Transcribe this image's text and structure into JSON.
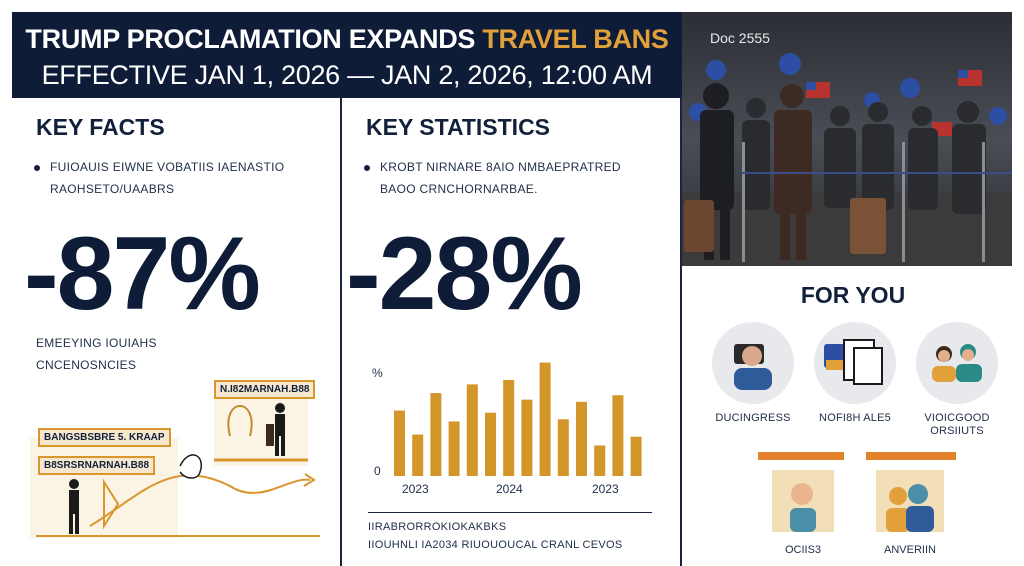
{
  "banner": {
    "line1_prefix": "TRUMP PROCLAMATION EXPANDS ",
    "line1_highlight": "TRAVEL BANS",
    "line2": "EFFECTIVE JAN 1, 2026 — JAN 2, 2026, 12:00 AM"
  },
  "photo": {
    "doc_label": "Doc 2555"
  },
  "key_facts": {
    "title": "KEY FACTS",
    "bullet_line1": "FUIOAUIS EIWNE VOBATIIS IAENASTIO",
    "bullet_line2": "RAOHSETO/UAABRS",
    "big_number": "-87%",
    "caption_line1": "EMEEYING IOUIAHS",
    "caption_line2": "CNCENOSNCIES",
    "tags": [
      "N.I82MARNAH.B88",
      "BANGSBSBRE 5. KRAAP",
      "B8SRSRNARNAH.B88"
    ]
  },
  "key_statistics": {
    "title": "KEY STATISTICS",
    "bullet_line1": "KROBT NIRNARE 8AIO NMBAEPRATRED",
    "bullet_line2": "BAOO CRNCHORNARBAE.",
    "big_number": "-28%",
    "footer_line1": "IIRABRORROKIOKAKBKS",
    "footer_line2": "IIOUHNLI IA2034 RIUOUOUCAL CRANL CEVOS"
  },
  "chart_data": {
    "type": "bar",
    "ylabel": "%",
    "y_tick_labels": [
      "0"
    ],
    "x_tick_labels": [
      "2023",
      "2024",
      "2023"
    ],
    "values": [
      30,
      19,
      38,
      25,
      42,
      29,
      44,
      35,
      52,
      26,
      34,
      14,
      37,
      18
    ],
    "ylim": [
      0,
      55
    ],
    "color": "#d4952b"
  },
  "for_you": {
    "title": "FOR YOU",
    "items": [
      {
        "label": "DUCINGRESS"
      },
      {
        "label": "NOFI8H ALE5"
      },
      {
        "label": "VIOICGOOD ORSIIUTS"
      }
    ],
    "thumbs": [
      {
        "label": "OCIIS3"
      },
      {
        "label": "ANVERIIN"
      }
    ]
  },
  "colors": {
    "navy": "#0f1c38",
    "accent_gold": "#e2a03a",
    "accent_orange": "#e2832c",
    "bar": "#d4952b"
  }
}
